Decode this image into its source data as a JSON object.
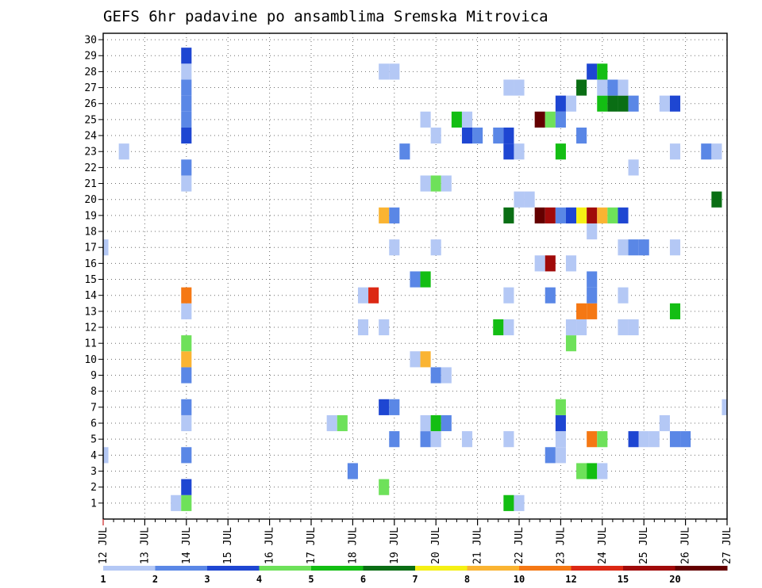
{
  "chart_data": {
    "type": "heatmap",
    "title": "GEFS 6hr padavine po ansamblima Sremska Mitrovica",
    "x_start": "2020-07-12T00",
    "x_end": "2020-07-27T00",
    "x_step_hours": 6,
    "x_tick_labels": [
      "12 JUL",
      "13 JUL",
      "14 JUL",
      "15 JUL",
      "16 JUL",
      "17 JUL",
      "18 JUL",
      "19 JUL",
      "20 JUL",
      "21 JUL",
      "22 JUL",
      "23 JUL",
      "24 JUL",
      "25 JUL",
      "26 JUL",
      "27 JUL"
    ],
    "y_tick_labels": [
      "1",
      "2",
      "3",
      "4",
      "5",
      "6",
      "7",
      "8",
      "9",
      "10",
      "11",
      "12",
      "13",
      "14",
      "15",
      "16",
      "17",
      "18",
      "19",
      "20",
      "21",
      "22",
      "23",
      "24",
      "25",
      "26",
      "27",
      "28",
      "29",
      "30"
    ],
    "ylim": [
      0,
      30
    ],
    "grid": true,
    "legend_position": "bottom",
    "color_levels": [
      1,
      2,
      3,
      4,
      5,
      6,
      7,
      8,
      10,
      12,
      15,
      20
    ],
    "colors": [
      "#b4c8f5",
      "#5a87e6",
      "#1e46d2",
      "#6ee15a",
      "#13be13",
      "#0a6e14",
      "#f5f014",
      "#fab432",
      "#f57814",
      "#dc2814",
      "#a00a0a",
      "#640000"
    ],
    "legend_labels": [
      "1",
      "2",
      "3",
      "4",
      "5",
      "6",
      "7",
      "8",
      "10",
      "12",
      "15",
      "20"
    ],
    "members": [
      {
        "member": 1,
        "cells": [
          {
            "t": "2020-07-13T18",
            "v": 1
          },
          {
            "t": "2020-07-14T00",
            "v": 4
          },
          {
            "t": "2020-07-21T18",
            "v": 5
          },
          {
            "t": "2020-07-22T00",
            "v": 1
          }
        ]
      },
      {
        "member": 2,
        "cells": [
          {
            "t": "2020-07-14T00",
            "v": 3
          },
          {
            "t": "2020-07-18T18",
            "v": 4
          }
        ]
      },
      {
        "member": 3,
        "cells": [
          {
            "t": "2020-07-18T00",
            "v": 2
          },
          {
            "t": "2020-07-23T12",
            "v": 4
          },
          {
            "t": "2020-07-23T18",
            "v": 5
          },
          {
            "t": "2020-07-24T00",
            "v": 1
          }
        ]
      },
      {
        "member": 4,
        "cells": [
          {
            "t": "2020-07-12T00",
            "v": 1
          },
          {
            "t": "2020-07-14T00",
            "v": 2
          },
          {
            "t": "2020-07-22T18",
            "v": 2
          },
          {
            "t": "2020-07-23T00",
            "v": 1
          }
        ]
      },
      {
        "member": 5,
        "cells": [
          {
            "t": "2020-07-19T00",
            "v": 2
          },
          {
            "t": "2020-07-19T18",
            "v": 2
          },
          {
            "t": "2020-07-20T00",
            "v": 1
          },
          {
            "t": "2020-07-20T18",
            "v": 1
          },
          {
            "t": "2020-07-21T18",
            "v": 1
          },
          {
            "t": "2020-07-23T00",
            "v": 1
          },
          {
            "t": "2020-07-23T18",
            "v": 10
          },
          {
            "t": "2020-07-24T00",
            "v": 4
          },
          {
            "t": "2020-07-24T18",
            "v": 3
          },
          {
            "t": "2020-07-25T00",
            "v": 1
          },
          {
            "t": "2020-07-25T06",
            "v": 1
          },
          {
            "t": "2020-07-25T18",
            "v": 2
          },
          {
            "t": "2020-07-26T00",
            "v": 2
          }
        ]
      },
      {
        "member": 6,
        "cells": [
          {
            "t": "2020-07-14T00",
            "v": 1
          },
          {
            "t": "2020-07-17T12",
            "v": 1
          },
          {
            "t": "2020-07-17T18",
            "v": 4
          },
          {
            "t": "2020-07-19T18",
            "v": 1
          },
          {
            "t": "2020-07-20T00",
            "v": 5
          },
          {
            "t": "2020-07-20T06",
            "v": 2
          },
          {
            "t": "2020-07-23T00",
            "v": 3
          },
          {
            "t": "2020-07-25T12",
            "v": 1
          }
        ]
      },
      {
        "member": 7,
        "cells": [
          {
            "t": "2020-07-14T00",
            "v": 2
          },
          {
            "t": "2020-07-18T18",
            "v": 3
          },
          {
            "t": "2020-07-19T00",
            "v": 2
          },
          {
            "t": "2020-07-23T00",
            "v": 4
          },
          {
            "t": "2020-07-27T00",
            "v": 1
          }
        ]
      },
      {
        "member": 9,
        "cells": [
          {
            "t": "2020-07-14T00",
            "v": 2
          },
          {
            "t": "2020-07-20T00",
            "v": 2
          },
          {
            "t": "2020-07-20T06",
            "v": 1
          }
        ]
      },
      {
        "member": 10,
        "cells": [
          {
            "t": "2020-07-14T00",
            "v": 8
          },
          {
            "t": "2020-07-19T12",
            "v": 1
          },
          {
            "t": "2020-07-19T18",
            "v": 8
          }
        ]
      },
      {
        "member": 11,
        "cells": [
          {
            "t": "2020-07-14T00",
            "v": 4
          },
          {
            "t": "2020-07-23T06",
            "v": 4
          }
        ]
      },
      {
        "member": 12,
        "cells": [
          {
            "t": "2020-07-18T06",
            "v": 1
          },
          {
            "t": "2020-07-18T18",
            "v": 1
          },
          {
            "t": "2020-07-21T12",
            "v": 5
          },
          {
            "t": "2020-07-21T18",
            "v": 1
          },
          {
            "t": "2020-07-23T06",
            "v": 1
          },
          {
            "t": "2020-07-23T12",
            "v": 1
          },
          {
            "t": "2020-07-24T12",
            "v": 1
          },
          {
            "t": "2020-07-24T18",
            "v": 1
          }
        ]
      },
      {
        "member": 13,
        "cells": [
          {
            "t": "2020-07-14T00",
            "v": 1
          },
          {
            "t": "2020-07-23T12",
            "v": 10
          },
          {
            "t": "2020-07-23T18",
            "v": 10
          },
          {
            "t": "2020-07-25T18",
            "v": 5
          }
        ]
      },
      {
        "member": 14,
        "cells": [
          {
            "t": "2020-07-14T00",
            "v": 10
          },
          {
            "t": "2020-07-18T06",
            "v": 1
          },
          {
            "t": "2020-07-18T12",
            "v": 12
          },
          {
            "t": "2020-07-21T18",
            "v": 1
          },
          {
            "t": "2020-07-22T18",
            "v": 2
          },
          {
            "t": "2020-07-23T18",
            "v": 2
          },
          {
            "t": "2020-07-24T12",
            "v": 1
          }
        ]
      },
      {
        "member": 15,
        "cells": [
          {
            "t": "2020-07-19T12",
            "v": 2
          },
          {
            "t": "2020-07-19T18",
            "v": 5
          },
          {
            "t": "2020-07-23T18",
            "v": 2
          }
        ]
      },
      {
        "member": 16,
        "cells": [
          {
            "t": "2020-07-22T12",
            "v": 1
          },
          {
            "t": "2020-07-22T18",
            "v": 15
          },
          {
            "t": "2020-07-23T06",
            "v": 1
          }
        ]
      },
      {
        "member": 17,
        "cells": [
          {
            "t": "2020-07-12T00",
            "v": 1
          },
          {
            "t": "2020-07-19T00",
            "v": 1
          },
          {
            "t": "2020-07-20T00",
            "v": 1
          },
          {
            "t": "2020-07-24T12",
            "v": 1
          },
          {
            "t": "2020-07-24T18",
            "v": 2
          },
          {
            "t": "2020-07-25T00",
            "v": 2
          },
          {
            "t": "2020-07-25T18",
            "v": 1
          }
        ]
      },
      {
        "member": 18,
        "cells": [
          {
            "t": "2020-07-23T18",
            "v": 1
          }
        ]
      },
      {
        "member": 19,
        "cells": [
          {
            "t": "2020-07-18T18",
            "v": 8
          },
          {
            "t": "2020-07-19T00",
            "v": 2
          },
          {
            "t": "2020-07-21T18",
            "v": 6
          },
          {
            "t": "2020-07-22T12",
            "v": 20
          },
          {
            "t": "2020-07-22T18",
            "v": 15
          },
          {
            "t": "2020-07-23T00",
            "v": 2
          },
          {
            "t": "2020-07-23T06",
            "v": 3
          },
          {
            "t": "2020-07-23T12",
            "v": 7
          },
          {
            "t": "2020-07-23T18",
            "v": 15
          },
          {
            "t": "2020-07-24T00",
            "v": 8
          },
          {
            "t": "2020-07-24T06",
            "v": 4
          },
          {
            "t": "2020-07-24T12",
            "v": 3
          }
        ]
      },
      {
        "member": 20,
        "cells": [
          {
            "t": "2020-07-22T00",
            "v": 1
          },
          {
            "t": "2020-07-22T06",
            "v": 1
          },
          {
            "t": "2020-07-26T18",
            "v": 6
          }
        ]
      },
      {
        "member": 21,
        "cells": [
          {
            "t": "2020-07-14T00",
            "v": 1
          },
          {
            "t": "2020-07-19T18",
            "v": 1
          },
          {
            "t": "2020-07-20T00",
            "v": 4
          },
          {
            "t": "2020-07-20T06",
            "v": 1
          }
        ]
      },
      {
        "member": 22,
        "cells": [
          {
            "t": "2020-07-14T00",
            "v": 2
          },
          {
            "t": "2020-07-24T18",
            "v": 1
          }
        ]
      },
      {
        "member": 23,
        "cells": [
          {
            "t": "2020-07-12T12",
            "v": 1
          },
          {
            "t": "2020-07-19T06",
            "v": 2
          },
          {
            "t": "2020-07-21T18",
            "v": 3
          },
          {
            "t": "2020-07-22T00",
            "v": 1
          },
          {
            "t": "2020-07-23T00",
            "v": 5
          },
          {
            "t": "2020-07-25T18",
            "v": 1
          },
          {
            "t": "2020-07-26T12",
            "v": 2
          },
          {
            "t": "2020-07-26T18",
            "v": 1
          }
        ]
      },
      {
        "member": 24,
        "cells": [
          {
            "t": "2020-07-14T00",
            "v": 3
          },
          {
            "t": "2020-07-20T00",
            "v": 1
          },
          {
            "t": "2020-07-20T18",
            "v": 3
          },
          {
            "t": "2020-07-21T00",
            "v": 2
          },
          {
            "t": "2020-07-21T12",
            "v": 2
          },
          {
            "t": "2020-07-21T18",
            "v": 3
          },
          {
            "t": "2020-07-23T12",
            "v": 2
          }
        ]
      },
      {
        "member": 25,
        "cells": [
          {
            "t": "2020-07-14T00",
            "v": 2
          },
          {
            "t": "2020-07-19T18",
            "v": 1
          },
          {
            "t": "2020-07-20T12",
            "v": 5
          },
          {
            "t": "2020-07-20T18",
            "v": 1
          },
          {
            "t": "2020-07-22T12",
            "v": 20
          },
          {
            "t": "2020-07-22T18",
            "v": 4
          },
          {
            "t": "2020-07-23T00",
            "v": 2
          }
        ]
      },
      {
        "member": 26,
        "cells": [
          {
            "t": "2020-07-14T00",
            "v": 2
          },
          {
            "t": "2020-07-23T00",
            "v": 3
          },
          {
            "t": "2020-07-23T06",
            "v": 1
          },
          {
            "t": "2020-07-24T00",
            "v": 5
          },
          {
            "t": "2020-07-24T06",
            "v": 6
          },
          {
            "t": "2020-07-24T12",
            "v": 6
          },
          {
            "t": "2020-07-24T18",
            "v": 2
          },
          {
            "t": "2020-07-25T12",
            "v": 1
          },
          {
            "t": "2020-07-25T18",
            "v": 3
          }
        ]
      },
      {
        "member": 27,
        "cells": [
          {
            "t": "2020-07-14T00",
            "v": 2
          },
          {
            "t": "2020-07-21T18",
            "v": 1
          },
          {
            "t": "2020-07-22T00",
            "v": 1
          },
          {
            "t": "2020-07-23T12",
            "v": 6
          },
          {
            "t": "2020-07-24T00",
            "v": 1
          },
          {
            "t": "2020-07-24T06",
            "v": 2
          },
          {
            "t": "2020-07-24T12",
            "v": 1
          }
        ]
      },
      {
        "member": 28,
        "cells": [
          {
            "t": "2020-07-14T00",
            "v": 1
          },
          {
            "t": "2020-07-18T18",
            "v": 1
          },
          {
            "t": "2020-07-19T00",
            "v": 1
          },
          {
            "t": "2020-07-23T18",
            "v": 3
          },
          {
            "t": "2020-07-24T00",
            "v": 5
          }
        ]
      },
      {
        "member": 29,
        "cells": [
          {
            "t": "2020-07-14T00",
            "v": 3
          }
        ]
      }
    ]
  }
}
